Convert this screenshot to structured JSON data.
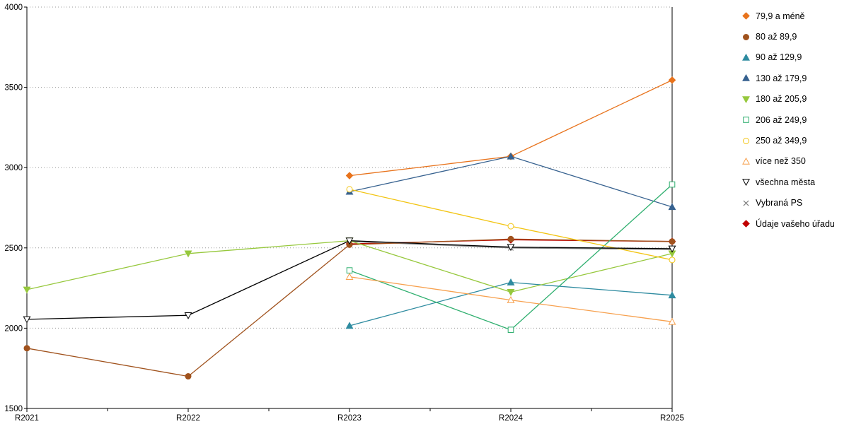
{
  "chart_data": {
    "type": "line",
    "title": "",
    "xlabel": "",
    "ylabel": "",
    "categories": [
      "R2021",
      "R2022",
      "R2023",
      "R2024",
      "R2025"
    ],
    "ylim": [
      1500,
      4000
    ],
    "ytick_step": 500,
    "grid": "horizontal-dotted",
    "legend_position": "right",
    "series": [
      {
        "name": "79,9 a méně",
        "color": "#E8731C",
        "marker": "diamond",
        "filled": true,
        "values": [
          null,
          null,
          2950,
          3070,
          3545
        ]
      },
      {
        "name": "80 až 89,9",
        "color": "#A0521D",
        "marker": "circle",
        "filled": true,
        "values": [
          1875,
          1700,
          2520,
          2555,
          2540
        ]
      },
      {
        "name": "90 až 129,9",
        "color": "#2E8BA0",
        "marker": "triangle-up",
        "filled": true,
        "values": [
          null,
          null,
          2015,
          2285,
          2205
        ]
      },
      {
        "name": "130 až 179,9",
        "color": "#36618F",
        "marker": "triangle-up",
        "filled": true,
        "values": [
          null,
          null,
          2850,
          3070,
          2755
        ]
      },
      {
        "name": "180 až 205,9",
        "color": "#96C83C",
        "marker": "triangle-down",
        "filled": true,
        "values": [
          2240,
          2465,
          2545,
          2225,
          2465
        ]
      },
      {
        "name": "206 až 249,9",
        "color": "#2FAF6F",
        "marker": "square",
        "filled": false,
        "values": [
          null,
          null,
          2360,
          1990,
          2895
        ]
      },
      {
        "name": "250 až 349,9",
        "color": "#F2C411",
        "marker": "circle",
        "filled": false,
        "values": [
          null,
          null,
          2865,
          2635,
          2425
        ]
      },
      {
        "name": "více než 350",
        "color": "#F7A14F",
        "marker": "triangle-up",
        "filled": false,
        "values": [
          null,
          null,
          2320,
          2175,
          2040
        ]
      },
      {
        "name": "všechna města",
        "color": "#000000",
        "marker": "triangle-down",
        "filled": false,
        "values": [
          2055,
          2080,
          2545,
          2505,
          2495
        ]
      },
      {
        "name": "Vybraná PS",
        "color": "#808080",
        "marker": "x",
        "filled": false,
        "values": [
          null,
          null,
          2540,
          2500,
          2490
        ]
      },
      {
        "name": "Údaje vašeho úřadu",
        "color": "#C00000",
        "marker": "diamond",
        "filled": true,
        "values": [
          null,
          null,
          2525,
          2550,
          2540
        ]
      }
    ],
    "draw_order": [
      10,
      9,
      0,
      1,
      2,
      3,
      4,
      5,
      6,
      7,
      8
    ]
  }
}
